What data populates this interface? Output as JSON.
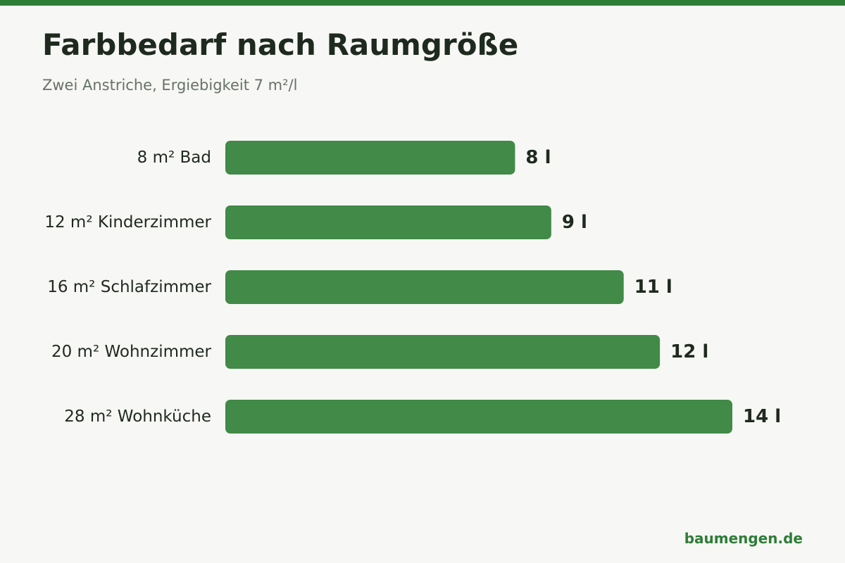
{
  "colors": {
    "accent": "#2e7d36",
    "bar": "#418a47",
    "background": "#f7f7f5",
    "text": "#1f2a1f",
    "subtitle": "#667366"
  },
  "header": {
    "title": "Farbbedarf nach Raumgröße",
    "subtitle": "Zwei Anstriche, Ergiebigkeit 7 m²/l"
  },
  "footer": {
    "source": "baumengen.de"
  },
  "chart_data": {
    "type": "bar",
    "orientation": "horizontal",
    "title": "Farbbedarf nach Raumgröße",
    "subtitle": "Zwei Anstriche, Ergiebigkeit 7 m²/l",
    "categories": [
      "8 m² Bad",
      "12 m² Kinderzimmer",
      "16 m² Schlafzimmer",
      "20 m² Wohnzimmer",
      "28 m² Wohnküche"
    ],
    "values": [
      8,
      9,
      11,
      12,
      14
    ],
    "value_labels": [
      "8 l",
      "9 l",
      "11 l",
      "12 l",
      "14 l"
    ],
    "unit": "l",
    "xlim": [
      0,
      14
    ],
    "grid": false,
    "legend": "none",
    "xlabel": "",
    "ylabel": ""
  }
}
